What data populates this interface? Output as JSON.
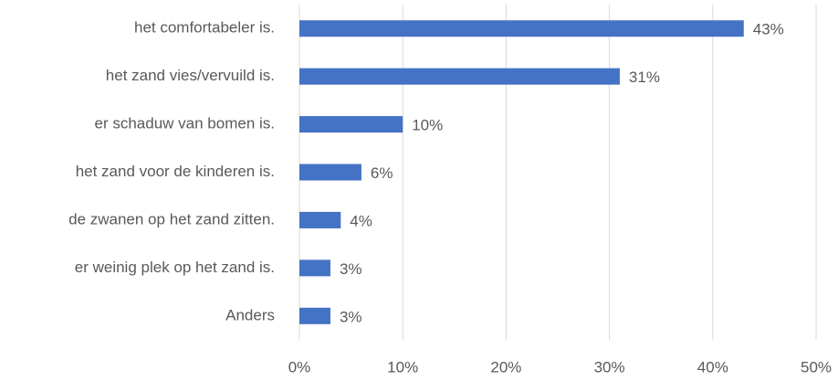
{
  "chart_data": {
    "type": "bar",
    "orientation": "horizontal",
    "categories": [
      "het comfortabeler is.",
      "het zand vies/vervuild is.",
      "er schaduw van bomen is.",
      "het zand voor de kinderen is.",
      "de zwanen op het zand zitten.",
      "er weinig plek op het zand is.",
      "Anders"
    ],
    "values": [
      43,
      31,
      10,
      6,
      4,
      3,
      3
    ],
    "value_labels": [
      "43%",
      "31%",
      "10%",
      "6%",
      "4%",
      "3%",
      "3%"
    ],
    "color": "#4472c4",
    "xlim": [
      0,
      50
    ],
    "xticks": [
      {
        "value": 0,
        "label": "0%"
      },
      {
        "value": 10,
        "label": "10%"
      },
      {
        "value": 20,
        "label": "20%"
      },
      {
        "value": 30,
        "label": "30%"
      },
      {
        "value": 40,
        "label": "40%"
      },
      {
        "value": 50,
        "label": "50%"
      }
    ],
    "grid": true
  }
}
